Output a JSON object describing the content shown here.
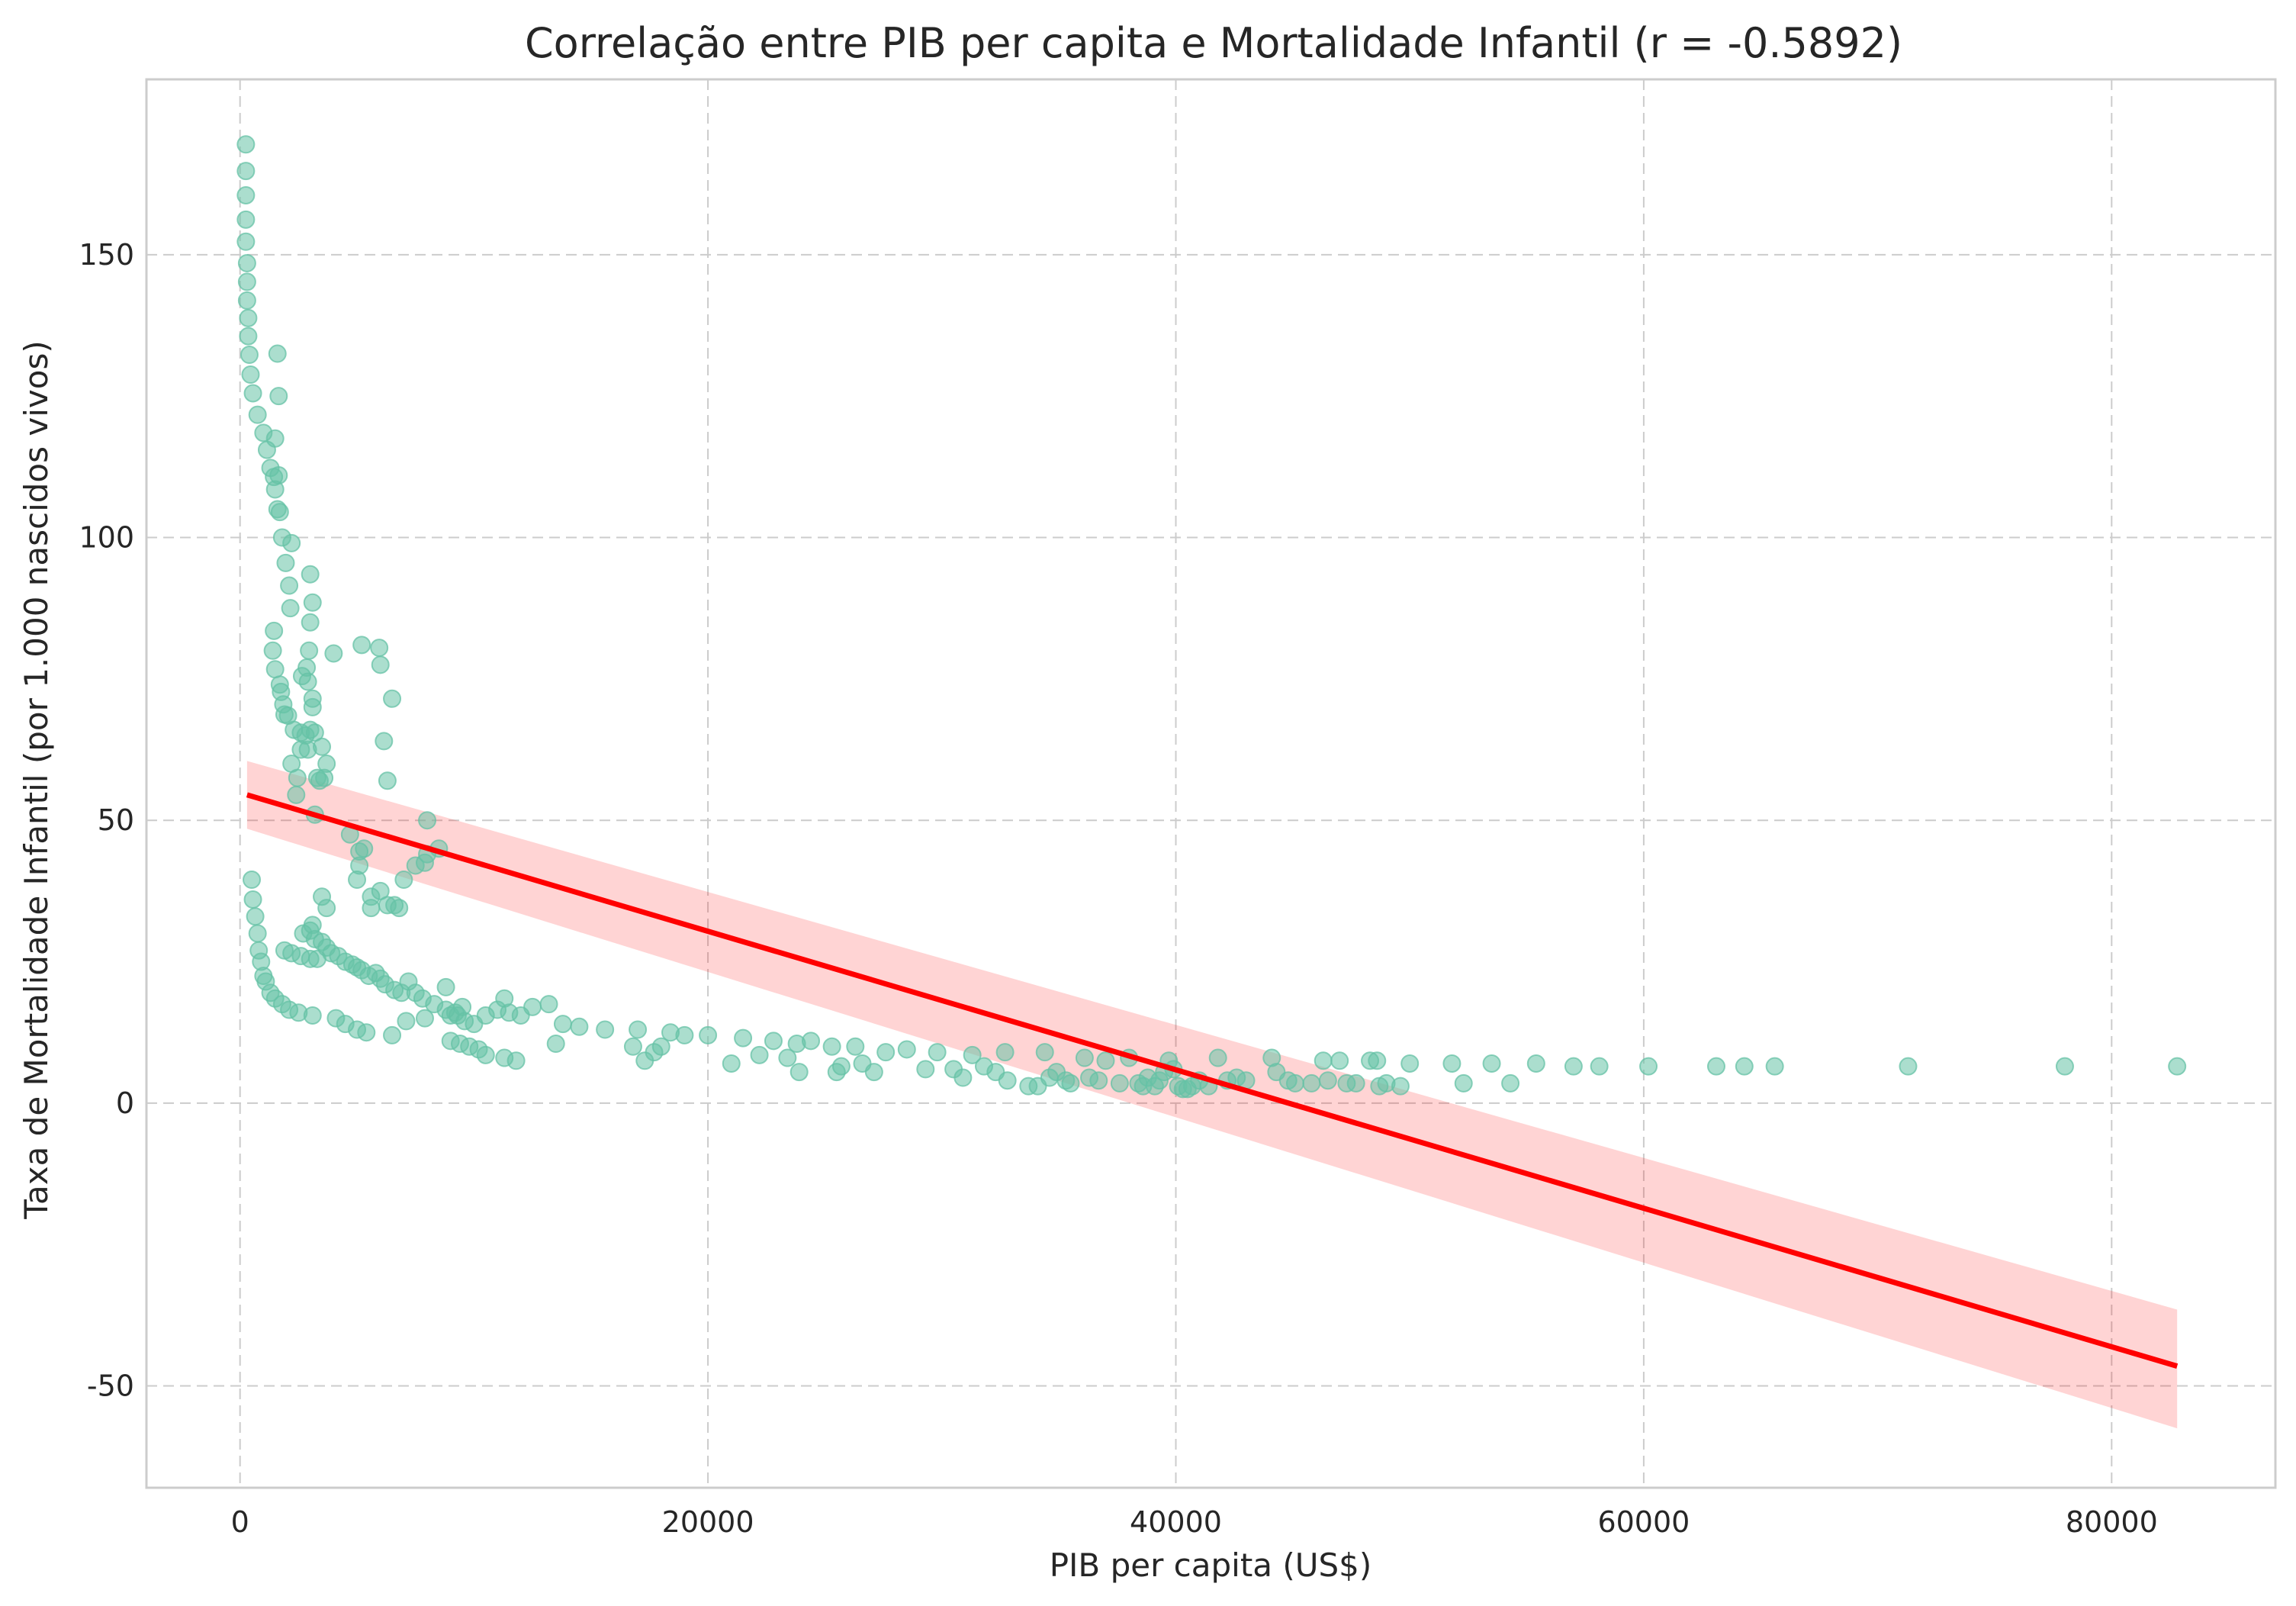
{
  "chart_data": {
    "type": "scatter",
    "title": "Correlação entre PIB per capita e Mortalidade Infantil (r = -0.5892)",
    "xlabel": "PIB per capita (US$)",
    "ylabel": "Taxa de Mortalidade Infantil (por 1.000 nascidos vivos)",
    "xlim": [
      -4000,
      87000
    ],
    "ylim": [
      -68,
      181
    ],
    "xticks": [
      0,
      20000,
      40000,
      60000,
      80000
    ],
    "xtick_labels": [
      "0",
      "20000",
      "40000",
      "60000",
      "80000"
    ],
    "yticks": [
      -50,
      0,
      50,
      100,
      150
    ],
    "ytick_labels": [
      "-50",
      "0",
      "50",
      "100",
      "150"
    ],
    "grid": true,
    "colors": {
      "points": "#66c2a5",
      "regression": "#ff0000",
      "ci": "#ffcccc",
      "grid": "#cccccc"
    },
    "regression": {
      "x": [
        300,
        82800
      ],
      "y": [
        54.5,
        -46.5
      ],
      "ci_upper": [
        60.5,
        -36.5
      ],
      "ci_lower": [
        48.5,
        -57.5
      ]
    },
    "points": [
      [
        250,
        169.5
      ],
      [
        250,
        164.8
      ],
      [
        250,
        160.5
      ],
      [
        250,
        156.2
      ],
      [
        250,
        152.3
      ],
      [
        300,
        148.5
      ],
      [
        300,
        145.2
      ],
      [
        300,
        141.9
      ],
      [
        350,
        138.8
      ],
      [
        350,
        135.6
      ],
      [
        400,
        132.3
      ],
      [
        450,
        128.8
      ],
      [
        550,
        125.5
      ],
      [
        750,
        121.7
      ],
      [
        1000,
        118.5
      ],
      [
        1150,
        115.5
      ],
      [
        1300,
        112.3
      ],
      [
        1450,
        110.7
      ],
      [
        1500,
        108.5
      ],
      [
        1600,
        105
      ],
      [
        1700,
        104.5
      ],
      [
        1650,
        111
      ],
      [
        1500,
        117.5
      ],
      [
        1600,
        132.5
      ],
      [
        1650,
        125
      ],
      [
        1800,
        100
      ],
      [
        1950,
        95.5
      ],
      [
        2100,
        91.5
      ],
      [
        2200,
        99
      ],
      [
        2150,
        87.5
      ],
      [
        1450,
        83.5
      ],
      [
        1400,
        80
      ],
      [
        1500,
        76.7
      ],
      [
        1700,
        74
      ],
      [
        1750,
        72.7
      ],
      [
        1850,
        70.5
      ],
      [
        1900,
        68.7
      ],
      [
        2050,
        68.5
      ],
      [
        2300,
        66
      ],
      [
        2600,
        65.5
      ],
      [
        2800,
        65
      ],
      [
        3000,
        66
      ],
      [
        2600,
        62.5
      ],
      [
        2900,
        62.5
      ],
      [
        3100,
        70
      ],
      [
        3100,
        71.5
      ],
      [
        2200,
        60
      ],
      [
        2450,
        57.5
      ],
      [
        2400,
        54.5
      ],
      [
        2650,
        75.5
      ],
      [
        2850,
        77
      ],
      [
        2900,
        74.5
      ],
      [
        2950,
        80
      ],
      [
        3000,
        85
      ],
      [
        3100,
        88.5
      ],
      [
        3000,
        93.5
      ],
      [
        3200,
        65.5
      ],
      [
        3500,
        63
      ],
      [
        3700,
        60
      ],
      [
        3400,
        57
      ],
      [
        3300,
        57.5
      ],
      [
        3600,
        57.5
      ],
      [
        3200,
        51
      ],
      [
        4000,
        79.5
      ],
      [
        5200,
        81
      ],
      [
        5950,
        80.5
      ],
      [
        6000,
        77.5
      ],
      [
        6500,
        71.5
      ],
      [
        6150,
        64
      ],
      [
        6300,
        57
      ],
      [
        4700,
        47.5
      ],
      [
        5100,
        44.5
      ],
      [
        5300,
        45
      ],
      [
        5100,
        42
      ],
      [
        5000,
        39.5
      ],
      [
        5600,
        36.5
      ],
      [
        5600,
        34.5
      ],
      [
        6000,
        37.5
      ],
      [
        6300,
        35
      ],
      [
        6600,
        35
      ],
      [
        6800,
        34.5
      ],
      [
        7000,
        39.5
      ],
      [
        7500,
        42
      ],
      [
        7900,
        42.5
      ],
      [
        8000,
        50
      ],
      [
        8500,
        45
      ],
      [
        8000,
        44
      ],
      [
        500,
        39.5
      ],
      [
        550,
        36
      ],
      [
        650,
        33
      ],
      [
        750,
        30
      ],
      [
        800,
        27
      ],
      [
        900,
        25
      ],
      [
        1000,
        22.5
      ],
      [
        1100,
        21.5
      ],
      [
        1300,
        19.5
      ],
      [
        1500,
        18.5
      ],
      [
        1800,
        17.5
      ],
      [
        2100,
        16.5
      ],
      [
        2500,
        16
      ],
      [
        3100,
        15.5
      ],
      [
        1900,
        27
      ],
      [
        2200,
        26.5
      ],
      [
        2600,
        26
      ],
      [
        3000,
        25.5
      ],
      [
        3300,
        25.5
      ],
      [
        2700,
        30
      ],
      [
        3000,
        30.5
      ],
      [
        3100,
        31.5
      ],
      [
        3200,
        29
      ],
      [
        3500,
        28.5
      ],
      [
        3700,
        27.5
      ],
      [
        3500,
        36.5
      ],
      [
        3700,
        34.5
      ],
      [
        3900,
        26.5
      ],
      [
        4200,
        26
      ],
      [
        4500,
        25
      ],
      [
        4800,
        24.5
      ],
      [
        5000,
        24
      ],
      [
        5200,
        23.5
      ],
      [
        5500,
        22.5
      ],
      [
        5800,
        23
      ],
      [
        6000,
        22
      ],
      [
        6200,
        21
      ],
      [
        6600,
        20
      ],
      [
        6900,
        19.5
      ],
      [
        7200,
        21.5
      ],
      [
        7500,
        19.5
      ],
      [
        7800,
        18.5
      ],
      [
        8300,
        17.5
      ],
      [
        8800,
        16.5
      ],
      [
        9000,
        15.5
      ],
      [
        9200,
        16
      ],
      [
        9500,
        17
      ],
      [
        8800,
        20.5
      ],
      [
        9300,
        15.5
      ],
      [
        9600,
        14.5
      ],
      [
        10000,
        14
      ],
      [
        10500,
        15.5
      ],
      [
        11000,
        16.5
      ],
      [
        11500,
        16
      ],
      [
        12000,
        15.5
      ],
      [
        12500,
        17
      ],
      [
        13200,
        17.5
      ],
      [
        13800,
        14
      ],
      [
        14500,
        13.5
      ],
      [
        15600,
        13
      ],
      [
        9000,
        11
      ],
      [
        9400,
        10.5
      ],
      [
        9800,
        10
      ],
      [
        10200,
        9.5
      ],
      [
        10500,
        8.5
      ],
      [
        11300,
        8
      ],
      [
        11800,
        7.5
      ],
      [
        13500,
        10.5
      ],
      [
        4100,
        15
      ],
      [
        4500,
        14
      ],
      [
        5000,
        13
      ],
      [
        5400,
        12.5
      ],
      [
        6500,
        12
      ],
      [
        7100,
        14.5
      ],
      [
        7900,
        15
      ],
      [
        11300,
        18.5
      ],
      [
        16800,
        10
      ],
      [
        17000,
        13
      ],
      [
        17300,
        7.5
      ],
      [
        17700,
        9
      ],
      [
        18000,
        10
      ],
      [
        18400,
        12.5
      ],
      [
        19000,
        12
      ],
      [
        20000,
        12
      ],
      [
        21000,
        7
      ],
      [
        21500,
        11.5
      ],
      [
        22200,
        8.5
      ],
      [
        22800,
        11
      ],
      [
        23400,
        8
      ],
      [
        23900,
        5.5
      ],
      [
        23800,
        10.5
      ],
      [
        24400,
        11
      ],
      [
        25300,
        10
      ],
      [
        25500,
        5.5
      ],
      [
        25700,
        6.5
      ],
      [
        26300,
        10
      ],
      [
        26600,
        7
      ],
      [
        27100,
        5.5
      ],
      [
        27600,
        9
      ],
      [
        28500,
        9.5
      ],
      [
        29300,
        6
      ],
      [
        29800,
        9
      ],
      [
        30500,
        6
      ],
      [
        30900,
        4.5
      ],
      [
        31300,
        8.5
      ],
      [
        31800,
        6.5
      ],
      [
        32300,
        5.5
      ],
      [
        32700,
        9
      ],
      [
        32800,
        4
      ],
      [
        33700,
        3
      ],
      [
        34100,
        3
      ],
      [
        34600,
        4.5
      ],
      [
        34400,
        9
      ],
      [
        34900,
        5.5
      ],
      [
        35300,
        4
      ],
      [
        35500,
        3.5
      ],
      [
        36100,
        8
      ],
      [
        36300,
        4.5
      ],
      [
        36700,
        4
      ],
      [
        37000,
        7.5
      ],
      [
        37600,
        3.5
      ],
      [
        38000,
        8
      ],
      [
        38400,
        3.5
      ],
      [
        38600,
        3
      ],
      [
        38800,
        4.5
      ],
      [
        39100,
        3
      ],
      [
        39300,
        4
      ],
      [
        39500,
        5.5
      ],
      [
        39700,
        7.5
      ],
      [
        39900,
        6
      ],
      [
        40100,
        3
      ],
      [
        40300,
        2.5
      ],
      [
        40500,
        2.5
      ],
      [
        40700,
        3
      ],
      [
        41000,
        4
      ],
      [
        41400,
        3
      ],
      [
        41800,
        8
      ],
      [
        42200,
        4
      ],
      [
        42600,
        4.5
      ],
      [
        43000,
        4
      ],
      [
        44100,
        8
      ],
      [
        44300,
        5.5
      ],
      [
        44800,
        4
      ],
      [
        45100,
        3.5
      ],
      [
        45800,
        3.5
      ],
      [
        46300,
        7.5
      ],
      [
        46500,
        4
      ],
      [
        47000,
        7.5
      ],
      [
        47300,
        3.5
      ],
      [
        47700,
        3.5
      ],
      [
        48300,
        7.5
      ],
      [
        48700,
        3
      ],
      [
        49000,
        3.5
      ],
      [
        48600,
        7.5
      ],
      [
        49600,
        3
      ],
      [
        50000,
        7
      ],
      [
        51800,
        7
      ],
      [
        52300,
        3.5
      ],
      [
        53500,
        7
      ],
      [
        54300,
        3.5
      ],
      [
        55400,
        7
      ],
      [
        57000,
        6.5
      ],
      [
        58100,
        6.5
      ],
      [
        60200,
        6.5
      ],
      [
        63100,
        6.5
      ],
      [
        64300,
        6.5
      ],
      [
        65600,
        6.5
      ],
      [
        71300,
        6.5
      ],
      [
        78000,
        6.5
      ],
      [
        82800,
        6.5
      ]
    ]
  }
}
